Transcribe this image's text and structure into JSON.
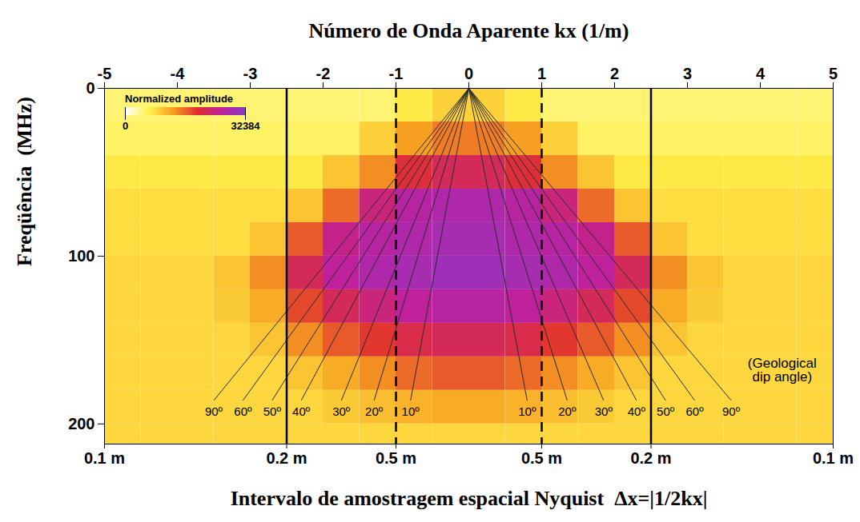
{
  "chart_data": {
    "type": "heatmap",
    "title": "Número de Onda Aparente kx (1/m)",
    "y_label": "Freqüência  (MHz)",
    "x2_label": "Intervalo de amostragem espacial Nyquist  Δx=|1/2kx|",
    "xlim": [
      -5,
      5
    ],
    "xticks": [
      -5,
      -4,
      -3,
      -2,
      -1,
      0,
      1,
      2,
      3,
      4,
      5
    ],
    "ylim": [
      0,
      212
    ],
    "yticks": [
      0,
      100,
      200
    ],
    "x2ticks": [
      {
        "value": -5,
        "label": "0.1 m"
      },
      {
        "value": -2.5,
        "label": "0.2 m"
      },
      {
        "value": -1,
        "label": "0.5 m"
      },
      {
        "value": 1,
        "label": "0.5 m"
      },
      {
        "value": 2.5,
        "label": "0.2 m"
      },
      {
        "value": 5,
        "label": "0.1 m"
      }
    ],
    "colorbar": {
      "label": "Normalized amplitude",
      "range": [
        0,
        32384
      ],
      "ticks": [
        0,
        32384
      ],
      "colors": [
        "#ffffff",
        "#fff04a",
        "#f7a020",
        "#e03030",
        "#c0209a",
        "#8a3ac8"
      ]
    },
    "cells": {
      "kx_edges": [
        -5,
        -4.5,
        -4,
        -3.5,
        -3,
        -2.5,
        -2,
        -1.5,
        -1,
        -0.5,
        0,
        0.5,
        1,
        1.5,
        2,
        2.5,
        3,
        3.5,
        4,
        4.5,
        5
      ],
      "frequency_edges": [
        0,
        20,
        40,
        60,
        80,
        100,
        120,
        140,
        160,
        180,
        200,
        220
      ],
      "amplitude": [
        [
          5000,
          5000,
          5000,
          5000,
          5000,
          5000,
          5000,
          5000,
          7000,
          9000,
          9000,
          7000,
          5000,
          5000,
          5000,
          5000,
          5000,
          5000,
          5000,
          5000
        ],
        [
          5500,
          5500,
          5500,
          5500,
          5500,
          5500,
          5500,
          9000,
          13000,
          15000,
          15000,
          13000,
          9000,
          5500,
          5500,
          5500,
          5500,
          5500,
          5500,
          5500
        ],
        [
          7000,
          7000,
          7000,
          7000,
          7000,
          7000,
          10000,
          14000,
          20000,
          22000,
          22000,
          20000,
          14000,
          10000,
          7000,
          7000,
          7000,
          7000,
          7000,
          7000
        ],
        [
          8000,
          8000,
          8000,
          8000,
          8000,
          10000,
          16000,
          24000,
          27000,
          28000,
          28000,
          27000,
          24000,
          16000,
          10000,
          8000,
          8000,
          8000,
          8000,
          8000
        ],
        [
          8000,
          8000,
          8000,
          8000,
          10000,
          17000,
          25000,
          27000,
          28000,
          29000,
          29000,
          28000,
          27000,
          25000,
          17000,
          10000,
          8000,
          8000,
          8000,
          8000
        ],
        [
          8500,
          8500,
          8500,
          10000,
          14000,
          22000,
          26000,
          28000,
          29000,
          30000,
          30000,
          29000,
          28000,
          26000,
          22000,
          14000,
          10000,
          8500,
          8500,
          8500
        ],
        [
          8500,
          8500,
          8500,
          9500,
          12000,
          18000,
          22000,
          24000,
          26000,
          27000,
          27000,
          26000,
          24000,
          22000,
          18000,
          12000,
          9500,
          8500,
          8500,
          8500
        ],
        [
          8500,
          8500,
          8500,
          8500,
          10000,
          14000,
          17000,
          19000,
          21000,
          22000,
          22000,
          21000,
          19000,
          17000,
          14000,
          10000,
          8500,
          8500,
          8500,
          8500
        ],
        [
          8500,
          8500,
          8500,
          8500,
          8500,
          10000,
          12000,
          14000,
          16000,
          17000,
          17000,
          16000,
          14000,
          12000,
          10000,
          8500,
          8500,
          8500,
          8500,
          8500
        ],
        [
          8500,
          8500,
          8500,
          8500,
          8500,
          8500,
          9500,
          10500,
          11500,
          12000,
          12000,
          11500,
          10500,
          9500,
          8500,
          8500,
          8500,
          8500,
          8500,
          8500
        ],
        [
          8500,
          8500,
          8500,
          8500,
          8500,
          8500,
          8500,
          8500,
          8500,
          8500,
          8500,
          8500,
          8500,
          8500,
          8500,
          8500,
          8500,
          8500,
          8500,
          8500
        ]
      ]
    },
    "reference_lines": [
      {
        "kx": -2.5,
        "line_style": "solid"
      },
      {
        "kx": -1,
        "line_style": "dashed"
      },
      {
        "kx": 1,
        "line_style": "dashed"
      },
      {
        "kx": 2.5,
        "line_style": "solid"
      }
    ],
    "dip_lines": {
      "origin": {
        "kx": 0,
        "frequency": 0
      },
      "lines": [
        {
          "label": "90º",
          "kx": -3.5,
          "frequency": 186
        },
        {
          "label": "60º",
          "kx": -3.1,
          "frequency": 186
        },
        {
          "label": "50º",
          "kx": -2.7,
          "frequency": 186
        },
        {
          "label": "40º",
          "kx": -2.3,
          "frequency": 186
        },
        {
          "label": "30º",
          "kx": -1.75,
          "frequency": 186
        },
        {
          "label": "20º",
          "kx": -1.3,
          "frequency": 186
        },
        {
          "label": "10º",
          "kx": -0.8,
          "frequency": 186
        },
        {
          "label": "10º",
          "kx": 0.8,
          "frequency": 186
        },
        {
          "label": "20º",
          "kx": 1.35,
          "frequency": 186
        },
        {
          "label": "30º",
          "kx": 1.85,
          "frequency": 186
        },
        {
          "label": "40º",
          "kx": 2.3,
          "frequency": 186
        },
        {
          "label": "50º",
          "kx": 2.7,
          "frequency": 186
        },
        {
          "label": "60º",
          "kx": 3.1,
          "frequency": 186
        },
        {
          "label": "90º",
          "kx": 3.6,
          "frequency": 186
        }
      ]
    },
    "annotation": {
      "text": "(Geological dip angle)",
      "kx": 4.3,
      "frequency": 168
    }
  }
}
